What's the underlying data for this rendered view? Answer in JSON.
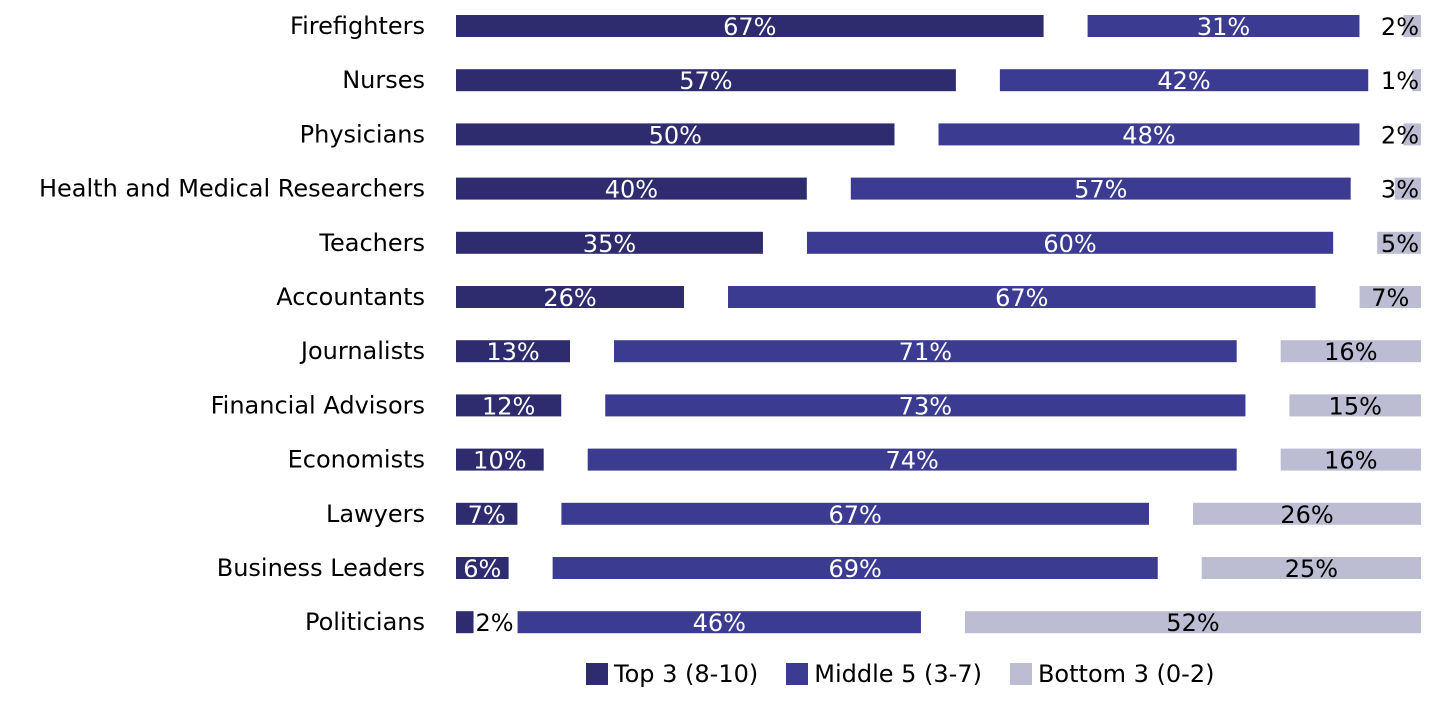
{
  "colors": {
    "top": "#2e2b6e",
    "middle": "#3c3b92",
    "bottom": "#bcbcd3",
    "label_on_dark": "#ffffff",
    "label_on_light": "#000000"
  },
  "chart_data": {
    "type": "bar",
    "orientation": "horizontal",
    "stacked_with_gaps": true,
    "categories": [
      "Firefighters",
      "Nurses",
      "Physicians",
      "Health and Medical Researchers",
      "Teachers",
      "Accountants",
      "Journalists",
      "Financial Advisors",
      "Economists",
      "Lawyers",
      "Business Leaders",
      "Politicians"
    ],
    "series": [
      {
        "name": "Top 3 (8-10)",
        "values": [
          67,
          57,
          50,
          40,
          35,
          26,
          13,
          12,
          10,
          7,
          6,
          2
        ],
        "labels": [
          "67%",
          "57%",
          "50%",
          "40%",
          "35%",
          "26%",
          "13%",
          "12%",
          "10%",
          "7%",
          "6%",
          "2%"
        ]
      },
      {
        "name": "Middle 5 (3-7)",
        "values": [
          31,
          42,
          48,
          57,
          60,
          67,
          71,
          73,
          74,
          67,
          69,
          46
        ],
        "labels": [
          "31%",
          "42%",
          "48%",
          "57%",
          "60%",
          "67%",
          "71%",
          "73%",
          "74%",
          "67%",
          "69%",
          "46%"
        ]
      },
      {
        "name": "Bottom 3 (0-2)",
        "values": [
          2,
          1,
          2,
          3,
          5,
          7,
          16,
          15,
          16,
          26,
          25,
          52
        ],
        "labels": [
          "2%",
          "1%",
          "2%",
          "3%",
          "5%",
          "7%",
          "16%",
          "15%",
          "16%",
          "26%",
          "25%",
          "52%"
        ]
      }
    ],
    "legend_position": "bottom",
    "grid": false
  },
  "legend": {
    "top": "Top 3 (8-10)",
    "middle": "Middle 5 (3-7)",
    "bottom": "Bottom 3 (0-2)"
  }
}
